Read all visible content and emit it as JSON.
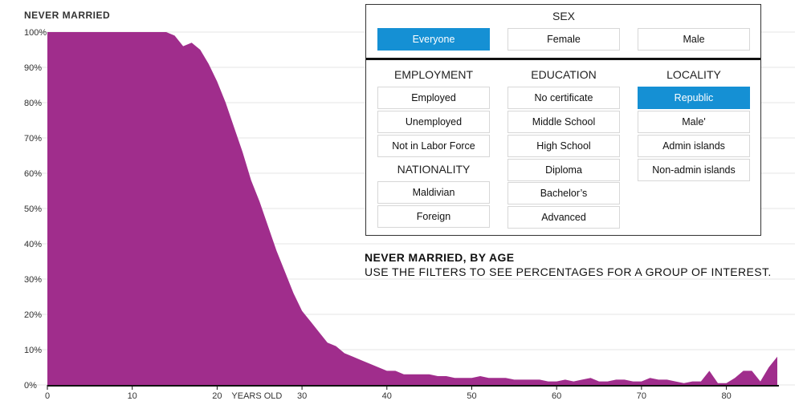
{
  "chart_data": {
    "type": "area",
    "ylabel": "NEVER MARRIED",
    "xlabel": "YEARS OLD",
    "xlim": [
      0,
      86
    ],
    "ylim": [
      0,
      100
    ],
    "yticks": [
      "0%",
      "10%",
      "20%",
      "30%",
      "40%",
      "50%",
      "60%",
      "70%",
      "80%",
      "90%",
      "100%"
    ],
    "xticks": [
      "0",
      "10",
      "20",
      "30",
      "40",
      "50",
      "60",
      "70",
      "80"
    ],
    "x": [
      0,
      1,
      2,
      3,
      4,
      5,
      6,
      7,
      8,
      9,
      10,
      11,
      12,
      13,
      14,
      15,
      16,
      17,
      18,
      19,
      20,
      21,
      22,
      23,
      24,
      25,
      26,
      27,
      28,
      29,
      30,
      31,
      32,
      33,
      34,
      35,
      36,
      37,
      38,
      39,
      40,
      41,
      42,
      43,
      44,
      45,
      46,
      47,
      48,
      49,
      50,
      51,
      52,
      53,
      54,
      55,
      56,
      57,
      58,
      59,
      60,
      61,
      62,
      63,
      64,
      65,
      66,
      67,
      68,
      69,
      70,
      71,
      72,
      73,
      74,
      75,
      76,
      77,
      78,
      79,
      80,
      81,
      82,
      83,
      84,
      85,
      86
    ],
    "values": [
      100,
      100,
      100,
      100,
      100,
      100,
      100,
      100,
      100,
      100,
      100,
      100,
      100,
      100,
      100,
      99,
      96,
      97,
      95,
      91,
      86,
      80,
      73,
      66,
      58,
      52,
      45,
      38,
      32,
      26,
      21,
      18,
      15,
      12,
      11,
      9,
      8,
      7,
      6,
      5,
      4,
      4,
      3,
      3,
      3,
      3,
      2.5,
      2.5,
      2,
      2,
      2,
      2.5,
      2,
      2,
      2,
      1.5,
      1.5,
      1.5,
      1.5,
      1,
      1,
      1.5,
      1,
      1.5,
      2,
      1,
      1,
      1.5,
      1.5,
      1,
      1,
      2,
      1.5,
      1.5,
      1,
      0.5,
      1,
      1,
      4,
      0.5,
      0.5,
      2,
      4,
      4,
      1,
      5,
      8
    ],
    "color": "#a02d8c"
  },
  "filters": {
    "sex_label": "SEX",
    "sex": [
      "Everyone",
      "Female",
      "Male"
    ],
    "employment_label": "EMPLOYMENT",
    "employment": [
      "Employed",
      "Unemployed",
      "Not in Labor Force"
    ],
    "nationality_label": "NATIONALITY",
    "nationality": [
      "Maldivian",
      "Foreign"
    ],
    "education_label": "EDUCATION",
    "education": [
      "No certificate",
      "Middle School",
      "High School",
      "Diploma",
      "Bachelor’s",
      "Advanced"
    ],
    "locality_label": "LOCALITY",
    "locality": [
      "Republic",
      "Male'",
      "Admin islands",
      "Non-admin islands"
    ],
    "active_color": "#1590d4"
  },
  "note": {
    "title": "NEVER MARRIED, BY AGE",
    "subtitle": "USE THE FILTERS TO SEE PERCENTAGES FOR A GROUP OF INTEREST."
  }
}
